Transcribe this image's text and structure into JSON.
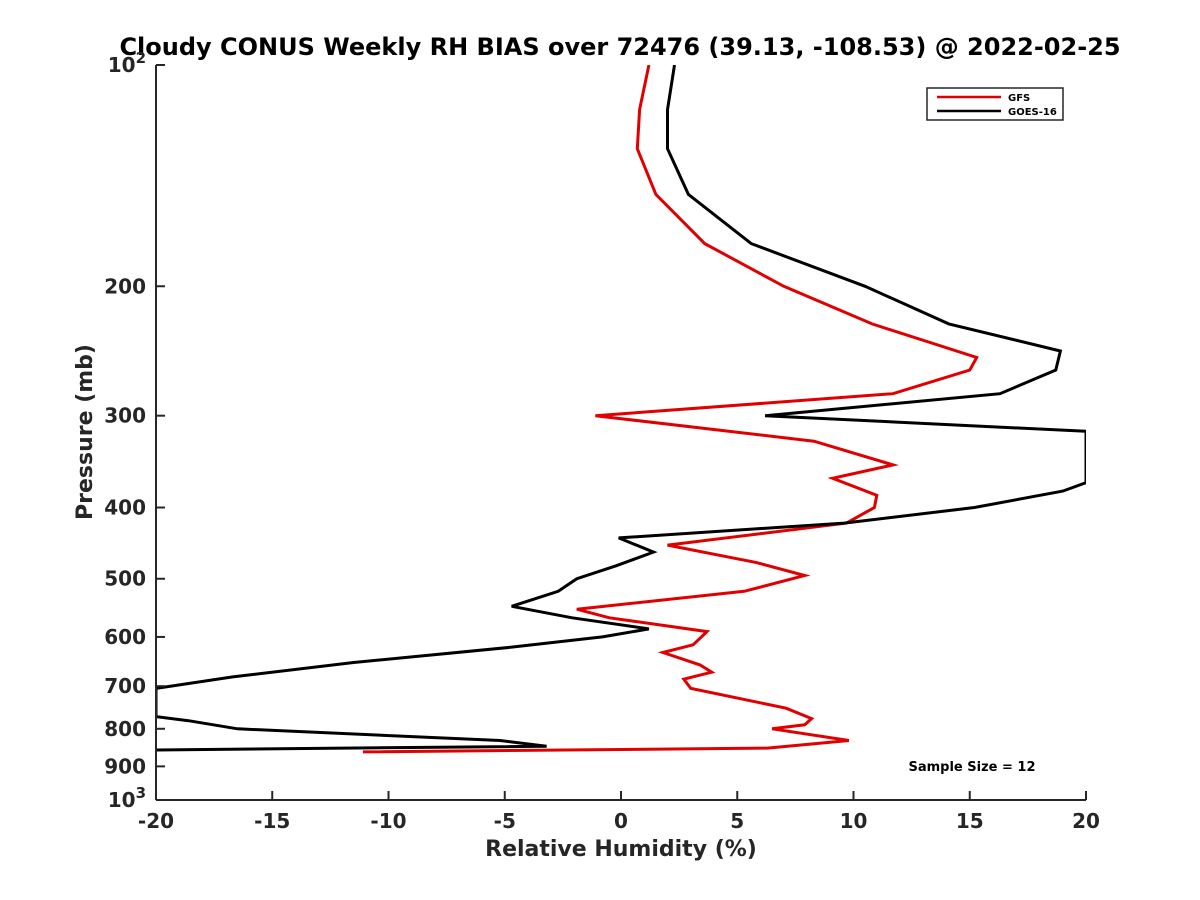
{
  "chart_data": {
    "type": "line",
    "title": "Cloudy CONUS Weekly RH BIAS over 72476 (39.13, -108.53) @ 2022-02-25",
    "xlabel": "Relative Humidity (%)",
    "ylabel": "Pressure (mb)",
    "xlim": [
      -20,
      20
    ],
    "ylim": [
      100,
      1000
    ],
    "y_scale": "log",
    "y_reversed": true,
    "grid": false,
    "legend_position": "top-right",
    "x_ticks": [
      -20,
      -15,
      -10,
      -5,
      0,
      5,
      10,
      15,
      20
    ],
    "x_tick_labels": [
      "-20",
      "-15",
      "-10",
      "-5",
      "0",
      "5",
      "10",
      "15",
      "20"
    ],
    "y_ticks": [
      100,
      200,
      300,
      400,
      500,
      600,
      700,
      800,
      900,
      1000
    ],
    "y_tick_labels": [
      {
        "base": "10",
        "exp": "2"
      },
      {
        "base": "200",
        "exp": ""
      },
      {
        "base": "300",
        "exp": ""
      },
      {
        "base": "400",
        "exp": ""
      },
      {
        "base": "500",
        "exp": ""
      },
      {
        "base": "600",
        "exp": ""
      },
      {
        "base": "700",
        "exp": ""
      },
      {
        "base": "800",
        "exp": ""
      },
      {
        "base": "900",
        "exp": ""
      },
      {
        "base": "10",
        "exp": "3"
      }
    ],
    "annotation": "Sample Size = 12",
    "series": [
      {
        "name": "GFS",
        "color": "#e00000",
        "points": [
          [
            1.2,
            100
          ],
          [
            0.8,
            115
          ],
          [
            0.7,
            130
          ],
          [
            1.5,
            150
          ],
          [
            3.6,
            175
          ],
          [
            7.0,
            200
          ],
          [
            10.8,
            225
          ],
          [
            15.3,
            250
          ],
          [
            15.0,
            260
          ],
          [
            11.7,
            280
          ],
          [
            -1.1,
            300
          ],
          [
            8.3,
            325
          ],
          [
            11.7,
            350
          ],
          [
            9.1,
            365
          ],
          [
            11.0,
            385
          ],
          [
            10.9,
            400
          ],
          [
            9.7,
            420
          ],
          [
            2.0,
            450
          ],
          [
            5.8,
            475
          ],
          [
            7.9,
            495
          ],
          [
            5.3,
            520
          ],
          [
            -1.9,
            550
          ],
          [
            -0.5,
            565
          ],
          [
            3.7,
            590
          ],
          [
            3.1,
            615
          ],
          [
            1.8,
            630
          ],
          [
            3.4,
            655
          ],
          [
            3.9,
            670
          ],
          [
            2.7,
            685
          ],
          [
            3.0,
            705
          ],
          [
            7.1,
            750
          ],
          [
            8.2,
            775
          ],
          [
            7.9,
            790
          ],
          [
            6.5,
            800
          ],
          [
            9.8,
            830
          ],
          [
            6.3,
            850
          ],
          [
            -11.1,
            860
          ]
        ]
      },
      {
        "name": "GOES-16",
        "color": "#000000",
        "points": [
          [
            2.3,
            100
          ],
          [
            2.0,
            115
          ],
          [
            2.0,
            130
          ],
          [
            2.9,
            150
          ],
          [
            5.6,
            175
          ],
          [
            10.5,
            200
          ],
          [
            14.1,
            225
          ],
          [
            18.9,
            245
          ],
          [
            18.7,
            260
          ],
          [
            16.3,
            280
          ],
          [
            6.2,
            300
          ],
          [
            20.0,
            315
          ],
          [
            20.0,
            370
          ],
          [
            19.0,
            380
          ],
          [
            15.2,
            400
          ],
          [
            9.6,
            420
          ],
          [
            -0.1,
            440
          ],
          [
            1.4,
            460
          ],
          [
            -0.2,
            480
          ],
          [
            -1.9,
            500
          ],
          [
            -2.7,
            520
          ],
          [
            -4.7,
            545
          ],
          [
            -2.1,
            565
          ],
          [
            1.2,
            585
          ],
          [
            -0.8,
            600
          ],
          [
            -4.8,
            620
          ],
          [
            -11.5,
            650
          ],
          [
            -16.7,
            680
          ],
          [
            -20.0,
            705
          ],
          [
            -20.0,
            770
          ],
          [
            -18.6,
            780
          ],
          [
            -16.5,
            800
          ],
          [
            -5.2,
            830
          ],
          [
            -3.2,
            845
          ],
          [
            -20.0,
            855
          ]
        ]
      }
    ]
  }
}
